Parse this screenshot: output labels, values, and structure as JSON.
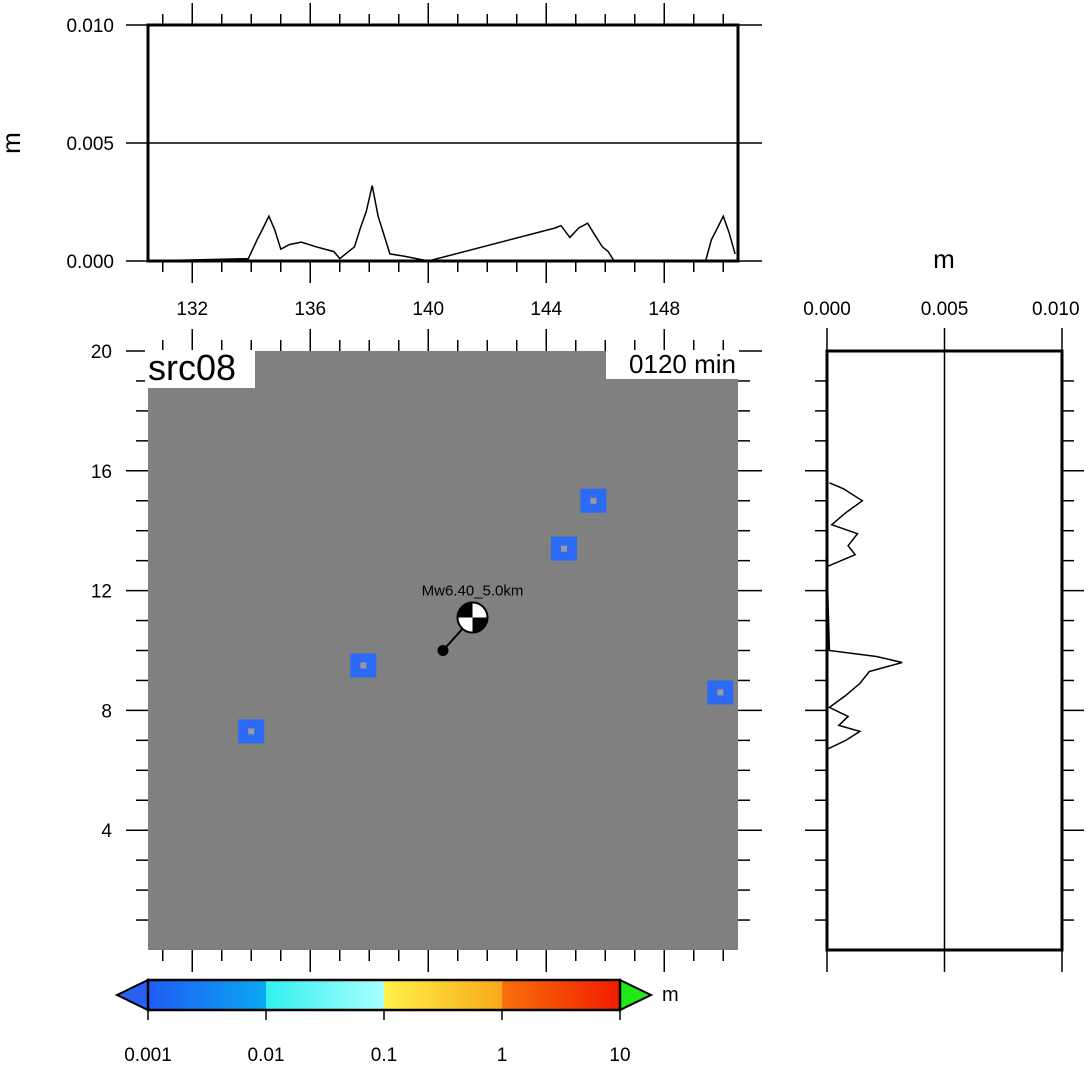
{
  "chart_data": [
    {
      "id": "top-profile",
      "type": "line",
      "y_unit": "m",
      "x_ticks": [
        132,
        136,
        140,
        144,
        148
      ],
      "xlim": [
        130.5,
        150.5
      ],
      "y_ticks": [
        "0.000",
        "0.005",
        "0.010"
      ],
      "ylim": [
        0,
        0.01
      ],
      "grid": "y-0.005",
      "series": [
        {
          "x": [
            130.5,
            133.9,
            134.2,
            134.4,
            134.6,
            134.8,
            135.0,
            135.3,
            135.7,
            136.2,
            136.8,
            137.0,
            137.5,
            137.7,
            137.9,
            138.1,
            138.3,
            138.5,
            138.7,
            139.2,
            140.0,
            144.3,
            144.5,
            144.8,
            145.1,
            145.4,
            145.6,
            145.9,
            146.1,
            146.3,
            149.4,
            149.6,
            149.8,
            150.0,
            150.2,
            150.4
          ],
          "y": [
            0.0,
            0.0001,
            0.0009,
            0.0014,
            0.0019,
            0.0013,
            0.0005,
            0.0007,
            0.0008,
            0.0006,
            0.0004,
            0.0001,
            0.0006,
            0.0014,
            0.0021,
            0.0032,
            0.0019,
            0.0011,
            0.0003,
            0.0002,
            0.0,
            0.0014,
            0.0015,
            0.001,
            0.0014,
            0.0016,
            0.0012,
            0.0006,
            0.0004,
            0.0,
            0.0,
            0.0009,
            0.0014,
            0.0019,
            0.0012,
            0.0003
          ]
        }
      ]
    },
    {
      "id": "side-profile",
      "type": "line",
      "x_unit": "m",
      "x_ticks": [
        "0.000",
        "0.005",
        "0.010"
      ],
      "xlim": [
        0,
        0.01
      ],
      "ylim": [
        0,
        20
      ],
      "grid": "x-0.005",
      "series": [
        {
          "y": [
            6.7,
            7.0,
            7.3,
            7.5,
            7.8,
            8.1,
            8.5,
            8.9,
            9.3,
            9.6,
            9.8,
            10.0,
            12.8,
            13.2,
            13.5,
            13.9,
            14.2,
            14.6,
            15.0,
            15.4,
            15.6
          ],
          "x": [
            0.0,
            0.0008,
            0.0014,
            0.0005,
            0.0009,
            0.0001,
            0.0008,
            0.0014,
            0.0018,
            0.0032,
            0.0021,
            0.0001,
            0.0,
            0.0012,
            0.0009,
            0.0013,
            0.0002,
            0.0008,
            0.0015,
            0.0007,
            0.0001
          ]
        }
      ]
    },
    {
      "id": "main-map",
      "type": "heatmap",
      "title": "src08",
      "time_label": "0120 min",
      "x_ticks": [
        132,
        136,
        140,
        144,
        148
      ],
      "y_ticks": [
        4,
        8,
        12,
        16,
        20
      ],
      "xlim": [
        130.5,
        150.5
      ],
      "ylim": [
        0,
        20
      ],
      "background": "#808080",
      "patches": [
        {
          "x": 134.0,
          "y": 7.3,
          "color": "#2a6af5"
        },
        {
          "x": 137.8,
          "y": 9.5,
          "color": "#2a6af5"
        },
        {
          "x": 144.6,
          "y": 13.4,
          "color": "#2a6af5"
        },
        {
          "x": 145.6,
          "y": 15.0,
          "color": "#2a6af5"
        },
        {
          "x": 149.9,
          "y": 8.6,
          "color": "#2a6af5"
        }
      ],
      "epicenter": {
        "x": 140.5,
        "y": 10.0
      },
      "beachball": {
        "x": 141.5,
        "y": 11.1
      },
      "source_label": "Mw6.40_5.0km"
    }
  ],
  "colorbar": {
    "unit": "m",
    "tick_labels": [
      "0.001",
      "0.01",
      "0.1",
      "1",
      "10"
    ],
    "segments": [
      {
        "from": "#1f5cf5",
        "to": "#0aa8f0"
      },
      {
        "from": "#33f0f0",
        "to": "#a8ffff"
      },
      {
        "from": "#fff24a",
        "to": "#f7a81a"
      },
      {
        "from": "#f7700a",
        "to": "#f21c00"
      }
    ],
    "under_color": "#2a60f0",
    "over_color": "#22e81a"
  },
  "axis_units": {
    "top_y": "m",
    "side_x": "m"
  }
}
